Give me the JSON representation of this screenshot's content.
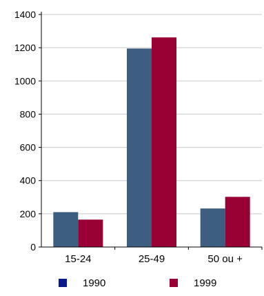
{
  "chart_data": {
    "type": "bar",
    "title": "",
    "xlabel": "",
    "ylabel": "",
    "categories": [
      "15-24",
      "25-49",
      "50 ou +"
    ],
    "series": [
      {
        "name": "1990",
        "values": [
          210,
          1195,
          232
        ],
        "color": "#3d5e80",
        "legend_color": "#0a1a8c"
      },
      {
        "name": "1999",
        "values": [
          165,
          1262,
          302
        ],
        "color": "#990033",
        "legend_color": "#990033"
      }
    ],
    "ylim": [
      0,
      1400
    ],
    "yticks": [
      0,
      200,
      400,
      600,
      800,
      1000,
      1200,
      1400
    ],
    "ytick_labels": [
      "0",
      "200",
      "400",
      "600",
      "800",
      "1000",
      "1200",
      "1400"
    ],
    "grid": true,
    "legend_position": "bottom"
  }
}
